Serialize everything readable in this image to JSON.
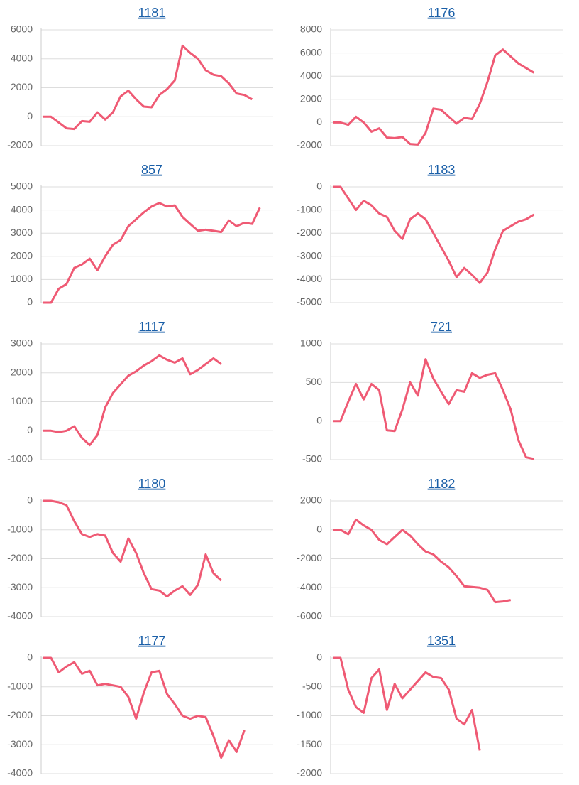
{
  "chart_data": [
    {
      "type": "line",
      "title": "1181",
      "color": "#ef5a74",
      "ylim": [
        -2000,
        6000
      ],
      "yticks": [
        -2000,
        0,
        2000,
        4000,
        6000
      ],
      "grid": true,
      "values": [
        0,
        0,
        -400,
        -800,
        -850,
        -300,
        -350,
        300,
        -200,
        300,
        1400,
        1800,
        1200,
        700,
        650,
        1500,
        1900,
        2500,
        4900,
        4400,
        4000,
        3200,
        2900,
        2800,
        2300,
        1600,
        1500,
        1200
      ]
    },
    {
      "type": "line",
      "title": "1176",
      "color": "#ef5a74",
      "ylim": [
        -2000,
        8000
      ],
      "yticks": [
        -2000,
        0,
        2000,
        4000,
        6000,
        8000
      ],
      "grid": true,
      "values": [
        0,
        0,
        -200,
        500,
        0,
        -800,
        -500,
        -1300,
        -1350,
        -1250,
        -1850,
        -1900,
        -900,
        1200,
        1100,
        500,
        -100,
        400,
        300,
        1600,
        3500,
        5800,
        6300,
        5700,
        5100,
        4700,
        4300
      ]
    },
    {
      "type": "line",
      "title": "857",
      "color": "#ef5a74",
      "ylim": [
        0,
        5000
      ],
      "yticks": [
        0,
        1000,
        2000,
        3000,
        4000,
        5000
      ],
      "grid": true,
      "values": [
        0,
        0,
        600,
        800,
        1500,
        1650,
        1900,
        1400,
        2000,
        2500,
        2700,
        3300,
        3600,
        3900,
        4150,
        4300,
        4150,
        4200,
        3700,
        3400,
        3100,
        3150,
        3100,
        3050,
        3550,
        3300,
        3450,
        3400,
        4100
      ]
    },
    {
      "type": "line",
      "title": "1183",
      "color": "#ef5a74",
      "ylim": [
        -5000,
        0
      ],
      "yticks": [
        -5000,
        -4000,
        -3000,
        -2000,
        -1000,
        0
      ],
      "grid": true,
      "values": [
        0,
        0,
        -500,
        -1000,
        -600,
        -800,
        -1150,
        -1300,
        -1900,
        -2250,
        -1400,
        -1150,
        -1400,
        -2000,
        -2600,
        -3200,
        -3900,
        -3500,
        -3800,
        -4150,
        -3700,
        -2700,
        -1900,
        -1700,
        -1500,
        -1400,
        -1200
      ]
    },
    {
      "type": "line",
      "title": "1117",
      "color": "#ef5a74",
      "ylim": [
        -1000,
        3000
      ],
      "yticks": [
        -1000,
        0,
        1000,
        2000,
        3000
      ],
      "grid": true,
      "values": [
        0,
        0,
        -50,
        0,
        150,
        -250,
        -500,
        -150,
        800,
        1300,
        1600,
        1900,
        2050,
        2250,
        2400,
        2600,
        2450,
        2350,
        2500,
        1950,
        2100,
        2300,
        2500,
        2300
      ]
    },
    {
      "type": "line",
      "title": "721",
      "color": "#ef5a74",
      "ylim": [
        -500,
        1000
      ],
      "yticks": [
        -500,
        0,
        500,
        1000
      ],
      "grid": true,
      "values": [
        0,
        0,
        250,
        480,
        280,
        480,
        400,
        -120,
        -130,
        150,
        500,
        330,
        800,
        550,
        380,
        220,
        400,
        380,
        620,
        560,
        600,
        620,
        400,
        150,
        -250,
        -470,
        -490
      ]
    },
    {
      "type": "line",
      "title": "1180",
      "color": "#ef5a74",
      "ylim": [
        -4000,
        0
      ],
      "yticks": [
        -4000,
        -3000,
        -2000,
        -1000,
        0
      ],
      "grid": true,
      "values": [
        0,
        0,
        -50,
        -150,
        -700,
        -1150,
        -1250,
        -1150,
        -1200,
        -1800,
        -2100,
        -1300,
        -1800,
        -2500,
        -3050,
        -3100,
        -3300,
        -3100,
        -2950,
        -3250,
        -2900,
        -1850,
        -2500,
        -2750
      ]
    },
    {
      "type": "line",
      "title": "1182",
      "color": "#ef5a74",
      "ylim": [
        -6000,
        2000
      ],
      "yticks": [
        -6000,
        -4000,
        -2000,
        0,
        2000
      ],
      "grid": true,
      "values": [
        0,
        0,
        -300,
        700,
        300,
        0,
        -700,
        -1000,
        -500,
        0,
        -400,
        -1000,
        -1500,
        -1700,
        -2200,
        -2600,
        -3200,
        -3900,
        -3950,
        -4000,
        -4150,
        -5000,
        -4950,
        -4850
      ]
    },
    {
      "type": "line",
      "title": "1177",
      "color": "#ef5a74",
      "ylim": [
        -4000,
        0
      ],
      "yticks": [
        -4000,
        -3000,
        -2000,
        -1000,
        0
      ],
      "grid": true,
      "values": [
        0,
        0,
        -500,
        -300,
        -150,
        -550,
        -450,
        -950,
        -900,
        -950,
        -1000,
        -1350,
        -2100,
        -1200,
        -500,
        -450,
        -1250,
        -1600,
        -2000,
        -2100,
        -2000,
        -2050,
        -2700,
        -3450,
        -2850,
        -3250,
        -2500
      ]
    },
    {
      "type": "line",
      "title": "1351",
      "color": "#ef5a74",
      "ylim": [
        -2000,
        0
      ],
      "yticks": [
        -2000,
        -1500,
        -1000,
        -500,
        0
      ],
      "grid": true,
      "values": [
        0,
        0,
        -550,
        -850,
        -950,
        -350,
        -200,
        -900,
        -450,
        -700,
        -550,
        -400,
        -250,
        -330,
        -350,
        -550,
        -1050,
        -1150,
        -900,
        -1600
      ]
    }
  ]
}
